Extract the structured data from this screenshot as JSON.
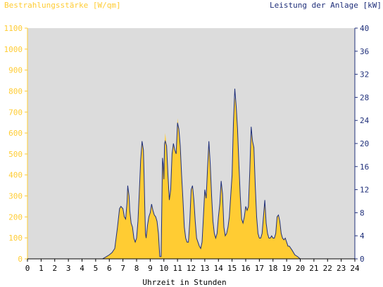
{
  "chart_data": {
    "type": "area",
    "title_left": "Bestrahlungsstärke [W/qm]",
    "title_right": "Leistung der Anlage [kW]",
    "xlabel": "Uhrzeit in Stunden",
    "xlim": [
      0,
      24
    ],
    "x_ticks": [
      "0",
      "1",
      "2",
      "3",
      "4",
      "5",
      "6",
      "7",
      "8",
      "9",
      "10",
      "11",
      "12",
      "13",
      "14",
      "15",
      "16",
      "17",
      "18",
      "19",
      "20",
      "21",
      "22",
      "23",
      "24"
    ],
    "y_left": {
      "lim": [
        0,
        1100
      ],
      "ticks": [
        "0",
        "100",
        "200",
        "300",
        "400",
        "500",
        "600",
        "700",
        "800",
        "900",
        "1000",
        "1100"
      ],
      "color": "#ffcc33"
    },
    "y_right": {
      "lim": [
        0,
        40
      ],
      "ticks": [
        "0",
        "4",
        "8",
        "12",
        "16",
        "20",
        "24",
        "28",
        "32",
        "36",
        "40"
      ],
      "color": "#1f2f7a"
    },
    "grid": false,
    "plot_background": "#dcdcdc",
    "series": [
      {
        "axis": "left",
        "color": "#ffcc33",
        "x": [
          0,
          5.5,
          5.8,
          6.0,
          6.2,
          6.4,
          6.6,
          6.75,
          6.85,
          7.0,
          7.1,
          7.2,
          7.3,
          7.35,
          7.45,
          7.5,
          7.6,
          7.7,
          7.8,
          7.9,
          8.0,
          8.1,
          8.2,
          8.3,
          8.4,
          8.5,
          8.55,
          8.6,
          8.65,
          8.7,
          8.8,
          8.9,
          9.0,
          9.1,
          9.2,
          9.3,
          9.4,
          9.5,
          9.6,
          9.7,
          9.8,
          9.9,
          9.95,
          10.0,
          10.05,
          10.1,
          10.2,
          10.3,
          10.4,
          10.5,
          10.6,
          10.7,
          10.8,
          10.9,
          11.0,
          11.1,
          11.2,
          11.3,
          11.4,
          11.5,
          11.6,
          11.7,
          11.8,
          11.9,
          12.0,
          12.1,
          12.2,
          12.3,
          12.4,
          12.5,
          12.6,
          12.7,
          12.8,
          12.9,
          13.0,
          13.1,
          13.2,
          13.3,
          13.4,
          13.5,
          13.6,
          13.7,
          13.8,
          13.9,
          14.0,
          14.1,
          14.2,
          14.3,
          14.4,
          14.5,
          14.6,
          14.7,
          14.8,
          14.9,
          15.0,
          15.1,
          15.2,
          15.3,
          15.4,
          15.5,
          15.6,
          15.7,
          15.8,
          15.9,
          16.0,
          16.1,
          16.2,
          16.3,
          16.4,
          16.5,
          16.6,
          16.7,
          16.8,
          16.9,
          17.0,
          17.1,
          17.2,
          17.3,
          17.4,
          17.5,
          17.6,
          17.7,
          17.8,
          17.9,
          18.0,
          18.1,
          18.2,
          18.3,
          18.4,
          18.5,
          18.6,
          18.7,
          18.8,
          18.9,
          19.0,
          19.1,
          19.2,
          19.4,
          19.6,
          19.8,
          20.0,
          20.1,
          24
        ],
        "values": [
          0,
          0,
          10,
          20,
          30,
          50,
          150,
          240,
          250,
          240,
          200,
          190,
          270,
          350,
          300,
          230,
          170,
          150,
          100,
          80,
          100,
          180,
          320,
          470,
          560,
          520,
          400,
          250,
          120,
          100,
          160,
          200,
          220,
          260,
          230,
          210,
          200,
          180,
          120,
          10,
          10,
          480,
          450,
          380,
          550,
          600,
          540,
          400,
          280,
          330,
          500,
          550,
          520,
          500,
          670,
          620,
          540,
          400,
          280,
          150,
          100,
          80,
          80,
          180,
          330,
          350,
          280,
          180,
          100,
          80,
          60,
          50,
          80,
          200,
          330,
          290,
          430,
          560,
          450,
          300,
          180,
          120,
          100,
          120,
          200,
          260,
          370,
          310,
          150,
          110,
          120,
          150,
          200,
          300,
          400,
          650,
          770,
          730,
          620,
          450,
          300,
          190,
          170,
          200,
          250,
          230,
          250,
          420,
          600,
          560,
          530,
          350,
          200,
          120,
          100,
          100,
          120,
          200,
          280,
          170,
          120,
          100,
          100,
          110,
          100,
          100,
          120,
          200,
          210,
          180,
          120,
          100,
          90,
          100,
          80,
          60,
          60,
          40,
          20,
          10,
          0,
          0,
          0
        ]
      },
      {
        "axis": "right",
        "color": "#1f2f7a",
        "x": [
          0,
          5.5,
          5.8,
          6.0,
          6.2,
          6.4,
          6.6,
          6.75,
          6.85,
          7.0,
          7.1,
          7.2,
          7.3,
          7.35,
          7.45,
          7.5,
          7.6,
          7.7,
          7.8,
          7.9,
          8.0,
          8.1,
          8.2,
          8.3,
          8.4,
          8.5,
          8.55,
          8.6,
          8.65,
          8.7,
          8.8,
          8.9,
          9.0,
          9.1,
          9.2,
          9.3,
          9.4,
          9.5,
          9.6,
          9.7,
          9.8,
          9.9,
          9.95,
          10.0,
          10.05,
          10.1,
          10.2,
          10.3,
          10.4,
          10.5,
          10.6,
          10.7,
          10.8,
          10.9,
          11.0,
          11.1,
          11.2,
          11.3,
          11.4,
          11.5,
          11.6,
          11.7,
          11.8,
          11.9,
          12.0,
          12.1,
          12.2,
          12.3,
          12.4,
          12.5,
          12.6,
          12.7,
          12.8,
          12.9,
          13.0,
          13.1,
          13.2,
          13.3,
          13.4,
          13.5,
          13.6,
          13.7,
          13.8,
          13.9,
          14.0,
          14.1,
          14.2,
          14.3,
          14.4,
          14.5,
          14.6,
          14.7,
          14.8,
          14.9,
          15.0,
          15.1,
          15.2,
          15.3,
          15.4,
          15.5,
          15.6,
          15.7,
          15.8,
          15.9,
          16.0,
          16.1,
          16.2,
          16.3,
          16.4,
          16.5,
          16.6,
          16.7,
          16.8,
          16.9,
          17.0,
          17.1,
          17.2,
          17.3,
          17.4,
          17.5,
          17.6,
          17.7,
          17.8,
          17.9,
          18.0,
          18.1,
          18.2,
          18.3,
          18.4,
          18.5,
          18.6,
          18.7,
          18.8,
          18.9,
          19.0,
          19.1,
          19.2,
          19.4,
          19.6,
          19.8,
          20.0,
          20.1,
          24
        ],
        "values": [
          0,
          0,
          0.4,
          0.7,
          1.1,
          1.8,
          5.5,
          8.7,
          9.1,
          8.7,
          7.3,
          6.9,
          9.8,
          12.7,
          10.9,
          8.4,
          6.2,
          5.5,
          3.6,
          2.9,
          3.6,
          6.5,
          11.6,
          17.1,
          20.4,
          18.9,
          14.5,
          9.1,
          4.4,
          3.6,
          5.8,
          7.3,
          8.0,
          9.5,
          8.4,
          7.6,
          7.3,
          6.5,
          4.4,
          0.4,
          0.4,
          17.5,
          16.4,
          13.8,
          20.0,
          20.4,
          19.6,
          14.5,
          10.2,
          12.0,
          18.2,
          20.0,
          18.9,
          18.2,
          23.6,
          22.5,
          19.6,
          14.5,
          10.2,
          5.5,
          3.6,
          2.9,
          2.9,
          6.5,
          12.0,
          12.7,
          10.2,
          6.5,
          3.6,
          2.9,
          2.2,
          1.8,
          2.9,
          7.3,
          12.0,
          10.5,
          15.6,
          20.4,
          16.4,
          10.9,
          6.5,
          4.4,
          3.6,
          4.4,
          7.3,
          9.5,
          13.5,
          11.3,
          5.5,
          4.0,
          4.4,
          5.5,
          7.3,
          10.9,
          14.5,
          23.6,
          29.5,
          26.5,
          22.5,
          16.4,
          10.9,
          6.9,
          6.2,
          7.3,
          9.1,
          8.4,
          9.1,
          15.3,
          22.9,
          20.4,
          19.3,
          12.7,
          7.3,
          4.4,
          3.6,
          3.6,
          4.4,
          7.3,
          10.2,
          6.2,
          4.4,
          3.6,
          3.6,
          4.0,
          3.6,
          3.6,
          4.4,
          7.3,
          7.6,
          6.5,
          4.4,
          3.6,
          3.3,
          3.6,
          2.9,
          2.2,
          2.2,
          1.5,
          0.7,
          0.4,
          0,
          0,
          0
        ]
      }
    ]
  }
}
